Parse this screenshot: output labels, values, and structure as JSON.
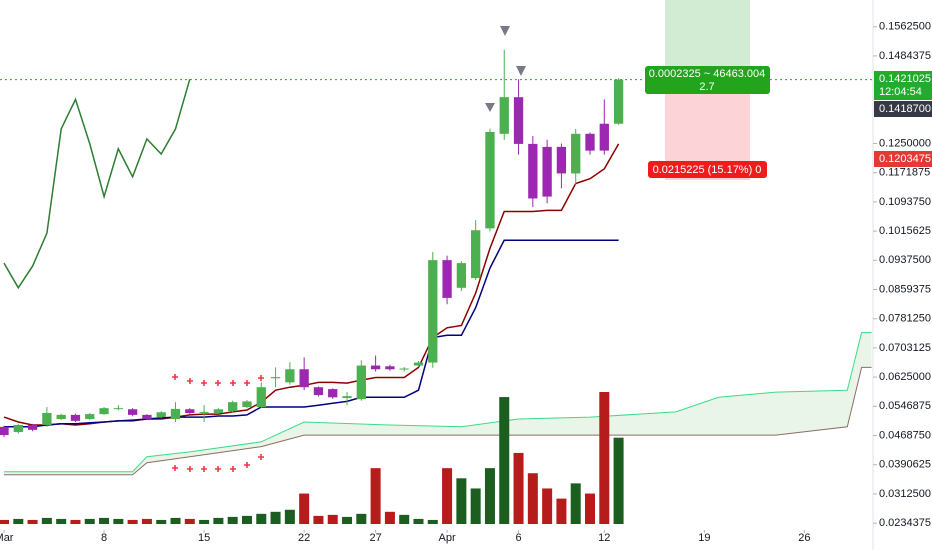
{
  "chart_data": {
    "type": "candlestick",
    "x": [
      0,
      1,
      2,
      3,
      4,
      5,
      6,
      7,
      8,
      9,
      10,
      11,
      12,
      13,
      14,
      15,
      16,
      17,
      18,
      19,
      20,
      21,
      22,
      23,
      24,
      25,
      26,
      27,
      28,
      29,
      30,
      31,
      32,
      33,
      34,
      35,
      36,
      37,
      38,
      39,
      40,
      41,
      42,
      43
    ],
    "open": [
      0.0492,
      0.0478,
      0.0497,
      0.0497,
      0.0513,
      0.0524,
      0.0513,
      0.0526,
      0.054,
      0.0539,
      0.0524,
      0.0518,
      0.0513,
      0.0539,
      0.053,
      0.0529,
      0.0534,
      0.0545,
      0.0545,
      0.0622,
      0.0611,
      0.0646,
      0.0598,
      0.0593,
      0.0569,
      0.0566,
      0.0656,
      0.0654,
      0.0646,
      0.0656,
      0.0664,
      0.0938,
      0.0864,
      0.089,
      0.1023,
      0.1276,
      0.1374,
      0.1249,
      0.1241,
      0.1241,
      0.117,
      0.1276,
      0.1303,
      0.1303
    ],
    "high": [
      0.0495,
      0.05,
      0.05,
      0.0545,
      0.0527,
      0.0527,
      0.0529,
      0.0545,
      0.055,
      0.0542,
      0.0526,
      0.0534,
      0.0558,
      0.0542,
      0.055,
      0.0542,
      0.0562,
      0.0564,
      0.0611,
      0.0651,
      0.0665,
      0.0678,
      0.06,
      0.0595,
      0.0585,
      0.067,
      0.0683,
      0.0658,
      0.0652,
      0.0668,
      0.096,
      0.095,
      0.0935,
      0.1045,
      0.129,
      0.1501,
      0.1422,
      0.127,
      0.126,
      0.125,
      0.1289,
      0.128,
      0.1368,
      0.1425
    ],
    "low": [
      0.0465,
      0.0474,
      0.048,
      0.0492,
      0.051,
      0.0505,
      0.051,
      0.0524,
      0.0536,
      0.052,
      0.051,
      0.0515,
      0.0505,
      0.0526,
      0.0505,
      0.0526,
      0.053,
      0.0542,
      0.0542,
      0.0598,
      0.0605,
      0.059,
      0.0573,
      0.0567,
      0.055,
      0.0562,
      0.064,
      0.0642,
      0.064,
      0.0652,
      0.065,
      0.082,
      0.0855,
      0.0885,
      0.1015,
      0.126,
      0.122,
      0.108,
      0.109,
      0.113,
      0.114,
      0.122,
      0.122,
      0.13
    ],
    "close": [
      0.047,
      0.0497,
      0.0484,
      0.0529,
      0.0524,
      0.0508,
      0.0526,
      0.0542,
      0.0542,
      0.0524,
      0.0513,
      0.0531,
      0.054,
      0.0529,
      0.0532,
      0.0539,
      0.0558,
      0.056,
      0.0598,
      0.0625,
      0.0646,
      0.0598,
      0.0577,
      0.0571,
      0.0574,
      0.0656,
      0.0646,
      0.0646,
      0.0648,
      0.0664,
      0.0938,
      0.0837,
      0.093,
      0.1018,
      0.1281,
      0.1374,
      0.1249,
      0.1103,
      0.1108,
      0.117,
      0.1276,
      0.1231,
      0.1231,
      0.1421
    ],
    "up_color": "#4caf50",
    "down_color": "#9c27b0",
    "volume": [
      4,
      5,
      4,
      6,
      5,
      4,
      5,
      6,
      5,
      4,
      5,
      4,
      6,
      5,
      4,
      6,
      7,
      8,
      10,
      12,
      14,
      30,
      8,
      9,
      7,
      10,
      55,
      12,
      9,
      5,
      4,
      55,
      45,
      35,
      55,
      125,
      70,
      50,
      35,
      25,
      40,
      30,
      130,
      85
    ],
    "volume_up_color": "#1b5e20",
    "volume_down_color": "#b71c1c",
    "overlays": [
      {
        "color": "#8b0000",
        "values": [
          0.0518,
          0.0505,
          0.0497,
          0.0497,
          0.05,
          0.0497,
          0.05,
          0.0505,
          0.0508,
          0.0508,
          0.0513,
          0.0513,
          0.0518,
          0.0524,
          0.0526,
          0.0526,
          0.0532,
          0.0537,
          0.0558,
          0.059,
          0.0598,
          0.0603,
          0.0611,
          0.0611,
          0.0609,
          0.0617,
          0.0624,
          0.0624,
          0.0624,
          0.0651,
          0.0731,
          0.0757,
          0.0763,
          0.085,
          0.097,
          0.1068,
          0.1068,
          0.1068,
          0.1071,
          0.1071,
          0.1143,
          0.1156,
          0.1182,
          0.1249
        ]
      },
      {
        "color": "#000080",
        "values": [
          0.0492,
          0.0492,
          0.0492,
          0.0497,
          0.05,
          0.05,
          0.0503,
          0.0505,
          0.0508,
          0.051,
          0.0513,
          0.0516,
          0.0518,
          0.0518,
          0.0518,
          0.0521,
          0.0521,
          0.0524,
          0.0545,
          0.0545,
          0.0545,
          0.0545,
          0.055,
          0.0555,
          0.056,
          0.0571,
          0.0571,
          0.0571,
          0.0571,
          0.059,
          0.0731,
          0.0737,
          0.0737,
          0.0811,
          0.0917,
          0.0991,
          0.0991,
          0.0991,
          0.0991,
          0.0991,
          0.0991,
          0.0991,
          0.0991,
          0.0991
        ]
      },
      {
        "color": "#2e7d32",
        "values": [
          0.093,
          0.0864,
          0.0922,
          0.101,
          0.1289,
          0.1368,
          0.1249,
          0.1108,
          0.1236,
          0.1161,
          0.1262,
          0.1222,
          0.1289,
          0.1422
        ]
      }
    ],
    "cloud": {
      "x": [
        0,
        9,
        10,
        13,
        18,
        21,
        27,
        32,
        36,
        41,
        47,
        50,
        54,
        59,
        60,
        60.7
      ],
      "upper": [
        0.0372,
        0.0372,
        0.0412,
        0.0425,
        0.0452,
        0.0505,
        0.0497,
        0.0492,
        0.0513,
        0.0518,
        0.0532,
        0.0571,
        0.0585,
        0.059,
        0.0744,
        0.0744
      ],
      "lower": [
        0.0364,
        0.0364,
        0.0396,
        0.0412,
        0.0439,
        0.047,
        0.047,
        0.047,
        0.047,
        0.047,
        0.047,
        0.047,
        0.047,
        0.0492,
        0.0651,
        0.0651
      ],
      "upper_color": "#3ddc84",
      "lower_color": "#8d6e63"
    },
    "xlim": [
      -0.28,
      60.8
    ],
    "ylim": [
      0.0224,
      0.1634
    ],
    "xticks": [
      {
        "value": 0,
        "label": "Mar"
      },
      {
        "value": 7,
        "label": "8"
      },
      {
        "value": 14,
        "label": "15"
      },
      {
        "value": 21,
        "label": "22"
      },
      {
        "value": 26,
        "label": "27"
      },
      {
        "value": 31,
        "label": "Apr"
      },
      {
        "value": 36,
        "label": "6"
      },
      {
        "value": 42,
        "label": "12"
      },
      {
        "value": 49,
        "label": "19"
      },
      {
        "value": 56,
        "label": "26"
      }
    ],
    "yticks": [
      {
        "value": 0.15625,
        "label": "0.1562500"
      },
      0.1484375,
      {
        "value": 0.125,
        "label": "0.1250000"
      },
      0.1171875,
      {
        "value": 0.109375,
        "label": "0.1093750"
      },
      0.1015625,
      {
        "value": 0.09375,
        "label": "0.0937500"
      },
      0.0859375,
      {
        "value": 0.078125,
        "label": "0.0781250"
      },
      0.0703125,
      {
        "value": 0.0625,
        "label": "0.0625000"
      },
      0.0546875,
      {
        "value": 0.046875,
        "label": "0.0468750"
      },
      0.0390625,
      {
        "value": 0.03125,
        "label": "0.0312500"
      },
      0.0234375
    ],
    "last_price": 0.1421025,
    "countdown": "12:04:54",
    "price_labels": [
      {
        "value": 0.14187,
        "label": "0.1418700"
      },
      0.1203475
    ],
    "position_tool": {
      "target_text": "0.0002325 ~ 46463.004",
      "ratio": "2.7",
      "stop_text": "0.0215225 (15.17%) 0"
    }
  }
}
